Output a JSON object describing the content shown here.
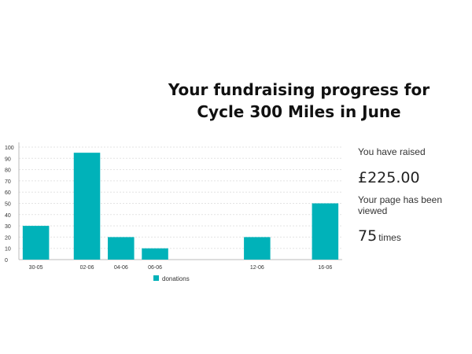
{
  "header": {
    "title_line1": "Your fundraising progress for",
    "title_line2": "Cycle 300 Miles in June"
  },
  "stats": {
    "raised_label": "You have raised",
    "raised_amount": "£225.00",
    "views_label": "Your page has been viewed",
    "views_count": "75",
    "views_unit": "times"
  },
  "colors": {
    "bar": "#00b2b9",
    "grid": "#e3e3e3",
    "axis": "#bbbbbb"
  },
  "chart_data": {
    "type": "bar",
    "categories": [
      "30-05",
      "02-06",
      "04-06",
      "06-06",
      "12-06",
      "16-06"
    ],
    "category_dates": [
      "2018-05-30",
      "2018-06-02",
      "2018-06-04",
      "2018-06-06",
      "2018-06-12",
      "2018-06-16"
    ],
    "x_range": [
      "2018-05-29",
      "2018-06-17"
    ],
    "series": [
      {
        "name": "donations",
        "values": [
          30,
          95,
          20,
          10,
          20,
          50
        ]
      }
    ],
    "xlabel": "",
    "ylabel": "",
    "ylim": [
      0,
      100
    ],
    "yticks": [
      0,
      10,
      20,
      30,
      40,
      50,
      60,
      70,
      80,
      90,
      100
    ],
    "grid": true,
    "legend_position": "bottom"
  }
}
